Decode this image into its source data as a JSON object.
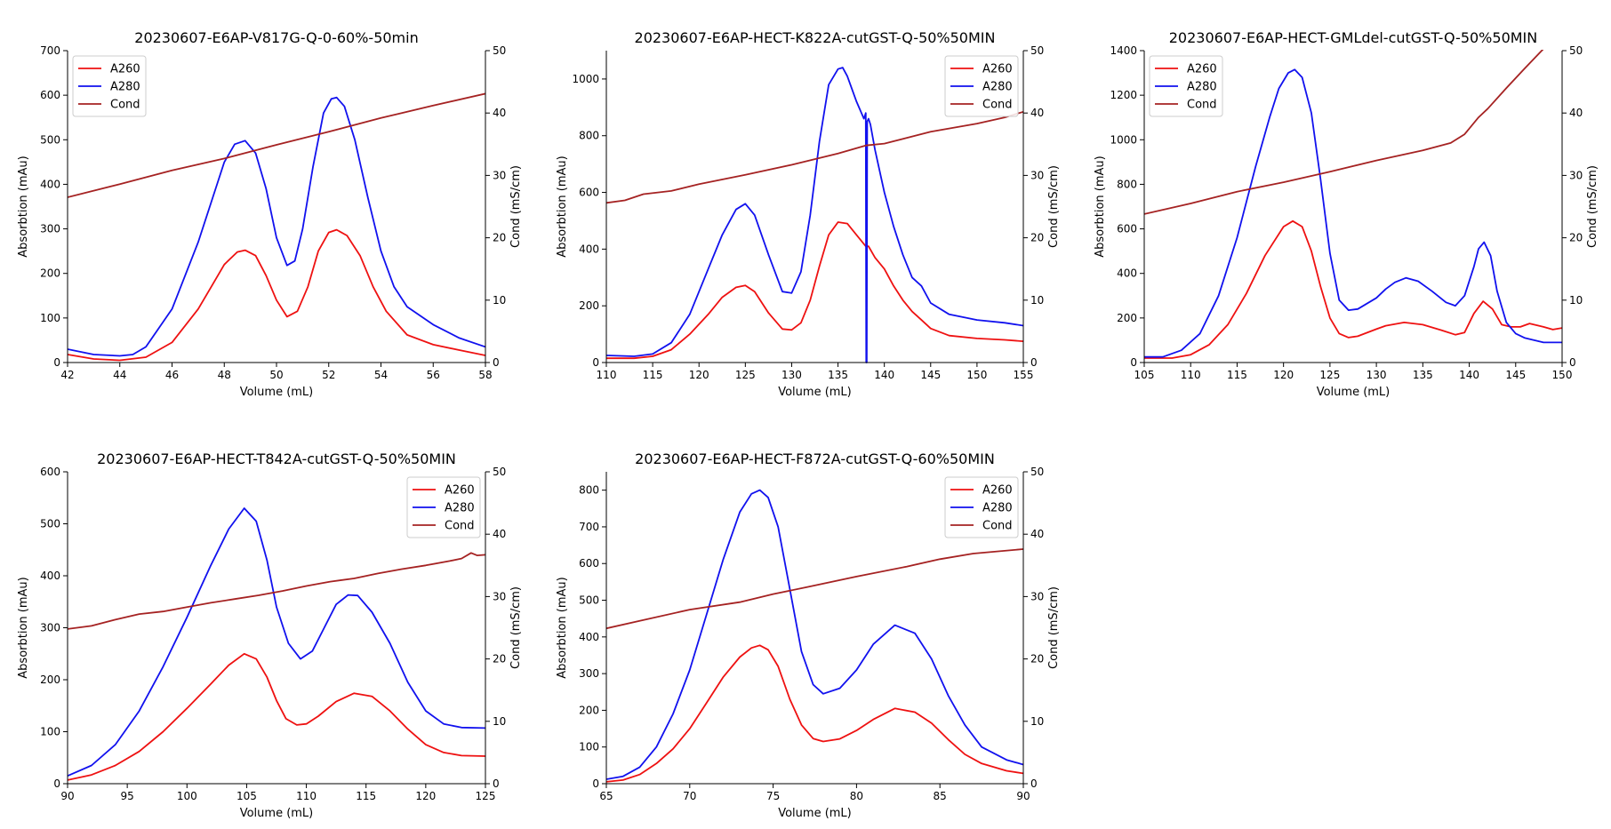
{
  "colors": {
    "A260": "#ee1111",
    "A280": "#1111ee",
    "Cond": "#a52222",
    "axis": "#000000"
  },
  "chart_data": [
    {
      "type": "line",
      "title": "20230607-E6AP-V817G-Q-0-60%-50min",
      "xlabel": "Volume (mL)",
      "ylabel": "Absorbtion (mAu)",
      "y2label": "Cond (mS/cm)",
      "xlim": [
        42,
        58
      ],
      "ylim": [
        0,
        700
      ],
      "y2lim": [
        0,
        50
      ],
      "xticks": [
        42,
        44,
        46,
        48,
        50,
        52,
        54,
        56,
        58
      ],
      "yticks": [
        0,
        100,
        200,
        300,
        400,
        500,
        600,
        700
      ],
      "y2ticks": [
        0,
        10,
        20,
        30,
        40,
        50
      ],
      "legend": "top-left",
      "series": [
        {
          "name": "A260",
          "axis": "left",
          "x": [
            42,
            43,
            44,
            45,
            46,
            47,
            47.5,
            48,
            48.5,
            48.8,
            49.2,
            49.6,
            50,
            50.4,
            50.8,
            51.2,
            51.6,
            52,
            52.3,
            52.7,
            53.2,
            53.7,
            54.2,
            55,
            56,
            57,
            58
          ],
          "y": [
            18,
            8,
            5,
            12,
            45,
            120,
            170,
            220,
            248,
            252,
            240,
            195,
            140,
            103,
            115,
            170,
            250,
            292,
            298,
            285,
            240,
            170,
            115,
            62,
            40,
            28,
            16
          ]
        },
        {
          "name": "A280",
          "axis": "left",
          "x": [
            42,
            43,
            44,
            44.5,
            45,
            46,
            47,
            47.5,
            48,
            48.4,
            48.8,
            49.2,
            49.6,
            50,
            50.4,
            50.7,
            51,
            51.4,
            51.8,
            52.1,
            52.3,
            52.6,
            53,
            53.5,
            54,
            54.5,
            55,
            56,
            57,
            58
          ],
          "y": [
            30,
            18,
            15,
            18,
            35,
            120,
            270,
            360,
            450,
            490,
            498,
            470,
            390,
            280,
            218,
            228,
            300,
            440,
            560,
            592,
            595,
            575,
            500,
            370,
            250,
            170,
            125,
            85,
            55,
            35
          ]
        },
        {
          "name": "Cond",
          "axis": "right",
          "x": [
            42,
            44,
            46,
            48,
            50,
            52,
            54,
            56,
            58
          ],
          "y": [
            26.5,
            28.6,
            30.8,
            32.7,
            34.9,
            37,
            39.2,
            41.2,
            43.1
          ]
        }
      ]
    },
    {
      "type": "line",
      "title": "20230607-E6AP-HECT-K822A-cutGST-Q-50%50MIN",
      "xlabel": "Volume (mL)",
      "ylabel": "Absorbtion (mAu)",
      "y2label": "Cond (mS/cm)",
      "xlim": [
        110,
        155
      ],
      "ylim": [
        0,
        1100
      ],
      "y2lim": [
        0,
        50
      ],
      "xticks": [
        110,
        115,
        120,
        125,
        130,
        135,
        140,
        145,
        150,
        155
      ],
      "yticks": [
        0,
        200,
        400,
        600,
        800,
        1000
      ],
      "y2ticks": [
        0,
        10,
        20,
        30,
        40,
        50
      ],
      "legend": "top-right",
      "series": [
        {
          "name": "A260",
          "axis": "left",
          "x": [
            110,
            113,
            115,
            117,
            119,
            121,
            122.5,
            124,
            125,
            126,
            127.5,
            129,
            130,
            131,
            132,
            133,
            134,
            135,
            136,
            137,
            138,
            138.3,
            139,
            140,
            141,
            142,
            143,
            144,
            145,
            147,
            150,
            153,
            155
          ],
          "y": [
            15,
            15,
            22,
            45,
            100,
            170,
            230,
            265,
            272,
            250,
            175,
            118,
            115,
            140,
            220,
            340,
            450,
            495,
            490,
            450,
            410,
            410,
            370,
            330,
            270,
            220,
            180,
            150,
            120,
            95,
            85,
            80,
            75
          ]
        },
        {
          "name": "A280",
          "axis": "left",
          "x": [
            110,
            113,
            115,
            117,
            119,
            121,
            122.5,
            124,
            125,
            126,
            127.5,
            129,
            130,
            131,
            132,
            133,
            134,
            135,
            135.5,
            136,
            137,
            137.8,
            138.0,
            138.05,
            138.1,
            138.15,
            138.3,
            138.5,
            139,
            140,
            141,
            142,
            143,
            144,
            145,
            147,
            150,
            153,
            155
          ],
          "y": [
            25,
            22,
            30,
            70,
            170,
            330,
            450,
            540,
            560,
            520,
            380,
            250,
            245,
            320,
            520,
            780,
            980,
            1035,
            1040,
            1010,
            920,
            860,
            880,
            0,
            0,
            850,
            860,
            840,
            750,
            600,
            480,
            380,
            300,
            270,
            210,
            170,
            150,
            140,
            130
          ]
        },
        {
          "name": "Cond",
          "axis": "right",
          "x": [
            110,
            112,
            114,
            117,
            120,
            125,
            130,
            135,
            138,
            140,
            145,
            150,
            153,
            155
          ],
          "y": [
            25.6,
            26,
            27,
            27.5,
            28.6,
            30.1,
            31.7,
            33.5,
            34.8,
            35.1,
            37,
            38.3,
            39.3,
            40.2
          ]
        }
      ]
    },
    {
      "type": "line",
      "title": "20230607-E6AP-HECT-GMLdel-cutGST-Q-50%50MIN",
      "xlabel": "Volume (mL)",
      "ylabel": "Absorbtion (mAu)",
      "y2label": "Cond (mS/cm)",
      "xlim": [
        105,
        150
      ],
      "ylim": [
        0,
        1400
      ],
      "y2lim": [
        0,
        50
      ],
      "xticks": [
        105,
        110,
        115,
        120,
        125,
        130,
        135,
        140,
        145,
        150
      ],
      "yticks": [
        0,
        200,
        400,
        600,
        800,
        1000,
        1200,
        1400
      ],
      "y2ticks": [
        0,
        10,
        20,
        30,
        40,
        50
      ],
      "legend": "top-left",
      "series": [
        {
          "name": "A260",
          "axis": "left",
          "x": [
            105,
            108,
            110,
            112,
            114,
            116,
            118,
            120,
            121,
            122,
            123,
            124,
            125,
            126,
            127,
            128,
            130,
            131,
            133,
            135,
            137,
            138.5,
            139.5,
            140.5,
            141.5,
            142.5,
            143.5,
            144.5,
            145.5,
            146.5,
            148,
            149,
            150
          ],
          "y": [
            20,
            20,
            35,
            80,
            170,
            310,
            480,
            610,
            635,
            610,
            500,
            340,
            200,
            130,
            112,
            118,
            150,
            165,
            180,
            170,
            145,
            125,
            135,
            220,
            275,
            240,
            170,
            160,
            160,
            175,
            160,
            148,
            155
          ]
        },
        {
          "name": "A280",
          "axis": "left",
          "x": [
            105,
            107,
            109,
            111,
            113,
            115,
            117,
            118.5,
            119.5,
            120.5,
            121.2,
            122,
            123,
            124,
            125,
            126,
            127,
            128,
            130,
            131,
            132,
            133.2,
            134.5,
            136,
            137.5,
            138.5,
            139.5,
            140.5,
            141,
            141.6,
            142.3,
            143,
            144,
            145,
            146,
            148,
            150
          ],
          "y": [
            25,
            25,
            55,
            130,
            300,
            560,
            880,
            1100,
            1230,
            1300,
            1315,
            1280,
            1120,
            820,
            490,
            280,
            235,
            240,
            290,
            330,
            360,
            380,
            365,
            320,
            270,
            255,
            300,
            430,
            510,
            540,
            480,
            320,
            180,
            130,
            110,
            90,
            90
          ]
        },
        {
          "name": "Cond",
          "axis": "right",
          "x": [
            105,
            110,
            115,
            120,
            125,
            130,
            135,
            138,
            139.5,
            141,
            142,
            144,
            146,
            148,
            150
          ],
          "y": [
            23.8,
            25.5,
            27.4,
            28.9,
            30.6,
            32.4,
            34,
            35.2,
            36.6,
            39.3,
            40.7,
            44,
            47.2,
            50.3,
            53.4
          ]
        }
      ]
    },
    {
      "type": "line",
      "title": "20230607-E6AP-HECT-T842A-cutGST-Q-50%50MIN",
      "xlabel": "Volume (mL)",
      "ylabel": "Absorbtion (mAu)",
      "y2label": "Cond (mS/cm)",
      "xlim": [
        90,
        125
      ],
      "ylim": [
        0,
        600
      ],
      "y2lim": [
        0,
        50
      ],
      "xticks": [
        90,
        95,
        100,
        105,
        110,
        115,
        120,
        125
      ],
      "yticks": [
        0,
        100,
        200,
        300,
        400,
        500,
        600
      ],
      "y2ticks": [
        0,
        10,
        20,
        30,
        40,
        50
      ],
      "legend": "top-right",
      "series": [
        {
          "name": "A260",
          "axis": "left",
          "x": [
            90,
            92,
            94,
            96,
            98,
            100,
            102,
            103.5,
            104.8,
            105.8,
            106.7,
            107.5,
            108.3,
            109.2,
            110,
            111,
            112.5,
            114,
            115.5,
            117,
            118.5,
            120,
            121.5,
            123,
            125
          ],
          "y": [
            7,
            17,
            35,
            62,
            100,
            145,
            192,
            228,
            250,
            240,
            205,
            160,
            125,
            113,
            115,
            130,
            158,
            174,
            168,
            140,
            105,
            75,
            60,
            54,
            53
          ]
        },
        {
          "name": "A280",
          "axis": "left",
          "x": [
            90,
            92,
            94,
            96,
            98,
            100,
            102,
            103.5,
            104.8,
            105.8,
            106.7,
            107.5,
            108.5,
            109.5,
            110.5,
            111.5,
            112.5,
            113.5,
            114.3,
            115.5,
            117,
            118.5,
            120,
            121.5,
            123,
            125
          ],
          "y": [
            15,
            35,
            75,
            140,
            225,
            320,
            420,
            490,
            530,
            505,
            430,
            340,
            270,
            240,
            255,
            300,
            345,
            363,
            362,
            330,
            270,
            195,
            140,
            115,
            108,
            107
          ]
        },
        {
          "name": "Cond",
          "axis": "right",
          "x": [
            90,
            92,
            94,
            96,
            98,
            100,
            102,
            104,
            106,
            108,
            110,
            112,
            114,
            116,
            118,
            120,
            122,
            123,
            123.8,
            124.3,
            125
          ],
          "y": [
            24.8,
            25.3,
            26.3,
            27.2,
            27.6,
            28.3,
            29,
            29.6,
            30.2,
            30.9,
            31.7,
            32.4,
            32.9,
            33.7,
            34.4,
            35,
            35.7,
            36.1,
            37,
            36.6,
            36.7
          ]
        }
      ]
    },
    {
      "type": "line",
      "title": "20230607-E6AP-HECT-F872A-cutGST-Q-60%50MIN",
      "xlabel": "Volume (mL)",
      "ylabel": "Absorbtion (mAu)",
      "y2label": "Cond (mS/cm)",
      "xlim": [
        65,
        90
      ],
      "ylim": [
        0,
        850
      ],
      "y2lim": [
        0,
        50
      ],
      "xticks": [
        65,
        70,
        75,
        80,
        85,
        90
      ],
      "yticks": [
        0,
        100,
        200,
        300,
        400,
        500,
        600,
        700,
        800
      ],
      "y2ticks": [
        0,
        10,
        20,
        30,
        40,
        50
      ],
      "legend": "top-right",
      "series": [
        {
          "name": "A260",
          "axis": "left",
          "x": [
            65,
            66,
            67,
            68,
            69,
            70,
            71,
            72,
            73,
            73.7,
            74.2,
            74.7,
            75.3,
            76,
            76.7,
            77.4,
            78,
            79,
            80,
            81,
            82.3,
            83.5,
            84.5,
            85.5,
            86.5,
            87.5,
            89,
            90
          ],
          "y": [
            5,
            10,
            25,
            55,
            95,
            150,
            220,
            290,
            345,
            370,
            377,
            365,
            320,
            230,
            160,
            123,
            115,
            122,
            145,
            175,
            205,
            195,
            165,
            120,
            80,
            55,
            35,
            28
          ]
        },
        {
          "name": "A280",
          "axis": "left",
          "x": [
            65,
            66,
            67,
            68,
            69,
            70,
            71,
            72,
            73,
            73.7,
            74.2,
            74.7,
            75.3,
            76,
            76.7,
            77.4,
            78,
            79,
            80,
            81,
            82.3,
            83.5,
            84.5,
            85.5,
            86.5,
            87.5,
            89,
            90
          ],
          "y": [
            12,
            20,
            45,
            100,
            190,
            310,
            460,
            610,
            740,
            790,
            800,
            780,
            700,
            530,
            360,
            270,
            245,
            260,
            310,
            380,
            432,
            410,
            340,
            240,
            160,
            100,
            65,
            52
          ]
        },
        {
          "name": "Cond",
          "axis": "right",
          "x": [
            65,
            67,
            70,
            73,
            75,
            77,
            80,
            83,
            85,
            87,
            90
          ],
          "y": [
            24.9,
            26.1,
            27.9,
            29.1,
            30.4,
            31.5,
            33.2,
            34.8,
            36,
            36.9,
            37.6
          ]
        }
      ]
    }
  ]
}
